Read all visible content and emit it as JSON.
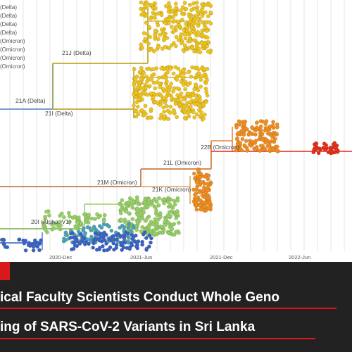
{
  "legend": [
    "(Delta)",
    "(Delta)",
    "(Delta)",
    "(Delta)",
    "(Omicron)",
    "(Omicron)",
    "(Omicron)",
    "(Omicron)"
  ],
  "clades": {
    "c21J": "21J (Delta)",
    "c21A": "21A (Delta)",
    "c21I": "21I (Delta)",
    "c22B": "22B (Omicron)",
    "c21L": "21L (Omicron)",
    "c21M": "21M (Omicron)",
    "c21K": "21K (Omicron)",
    "c20I": "20I (Alpha, V1)"
  },
  "axis": [
    "2020-Dec",
    "2021-Jun",
    "2021-Dec",
    "2022-Jun"
  ],
  "headline": {
    "line1": "ical Faculty Scientists Conduct Whole Geno",
    "line2": "ing of SARS-CoV-2 Variants in Sri Lanka"
  },
  "colors": {
    "banner": "#222222",
    "accent_red": "#e0161b",
    "delta_yellow": "#f0c419",
    "omicron_orange": "#f58a1f",
    "omicron_red": "#e8241b",
    "alpha_green": "#8fd16a",
    "early_blue": "#2f5fd6"
  }
}
